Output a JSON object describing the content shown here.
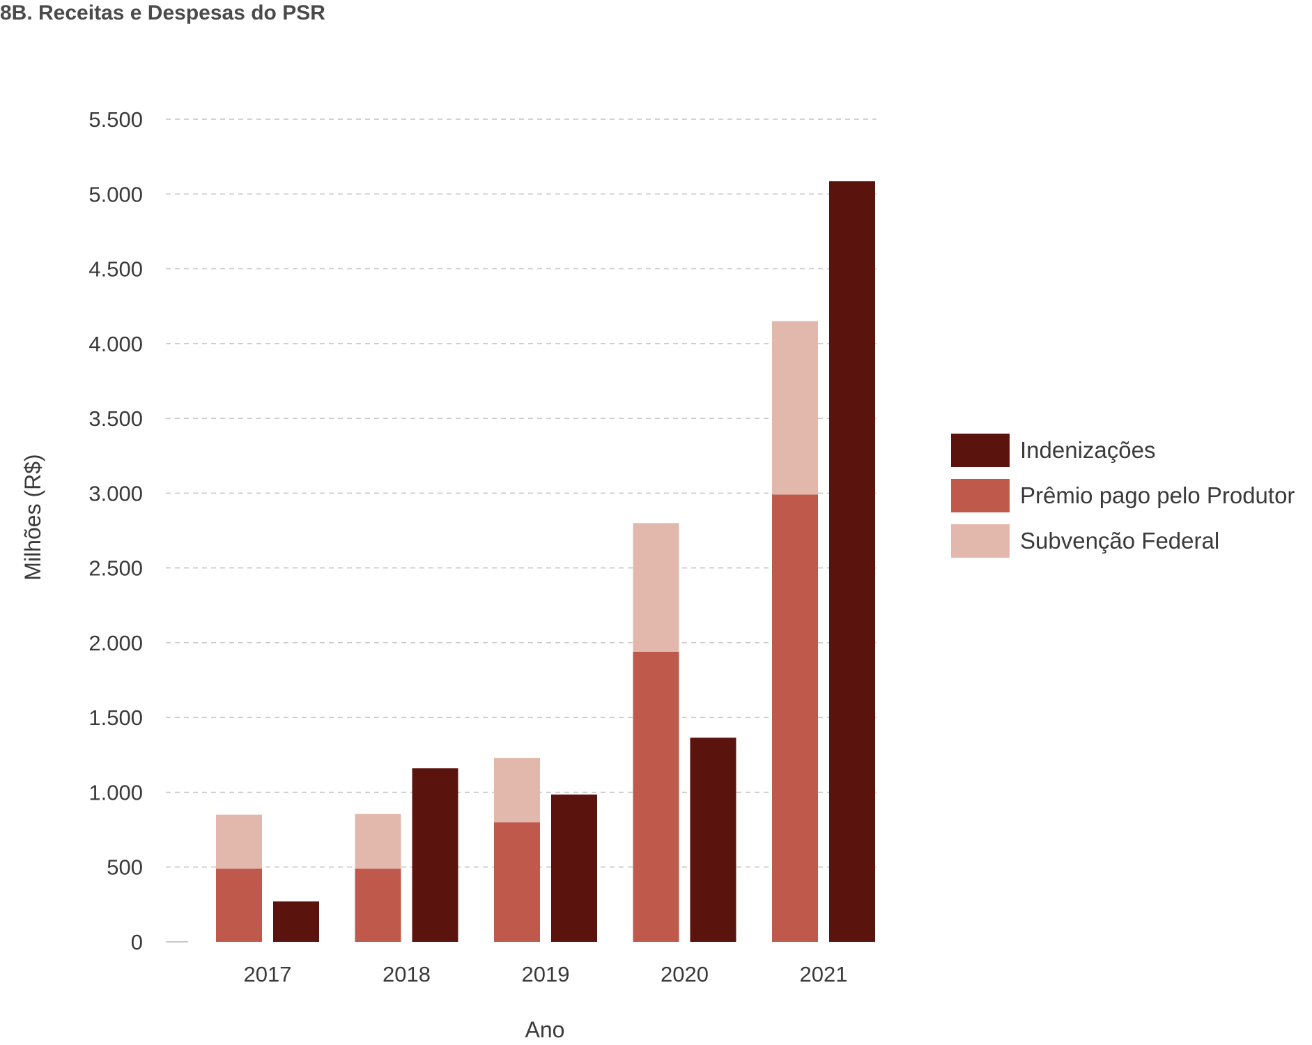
{
  "chart_data": {
    "type": "bar",
    "title": "8B. Receitas e Despesas do PSR",
    "xlabel": "Ano",
    "ylabel": "Milhões (R$)",
    "categories": [
      "2017",
      "2018",
      "2019",
      "2020",
      "2021"
    ],
    "ylim": [
      0,
      5500
    ],
    "yticks": [
      0,
      500,
      1000,
      1500,
      2000,
      2500,
      3000,
      3500,
      4000,
      4500,
      5000,
      5500
    ],
    "ytick_labels": [
      "0",
      "500",
      "1.000",
      "1.500",
      "2.000",
      "2.500",
      "3.000",
      "3.500",
      "4.000",
      "4.500",
      "5.000",
      "5.500"
    ],
    "grid": true,
    "grid_style": "dashed",
    "legend_position": "right",
    "stacked_bar": {
      "series": [
        {
          "name": "Prêmio pago pelo Produtor",
          "color": "#bf594b",
          "values": [
            490,
            490,
            800,
            1940,
            2990
          ]
        },
        {
          "name": "Subvenção Federal",
          "color": "#e3b8ac",
          "values": [
            360,
            365,
            430,
            860,
            1160
          ]
        }
      ]
    },
    "single_bar": {
      "series": [
        {
          "name": "Indenizações",
          "color": "#5b130d",
          "values": [
            270,
            1160,
            985,
            1365,
            5085
          ]
        }
      ]
    },
    "legend": [
      {
        "name": "Indenizações",
        "color": "#5b130d"
      },
      {
        "name": "Prêmio pago pelo Produtor",
        "color": "#bf594b"
      },
      {
        "name": "Subvenção Federal",
        "color": "#e3b8ac"
      }
    ]
  }
}
